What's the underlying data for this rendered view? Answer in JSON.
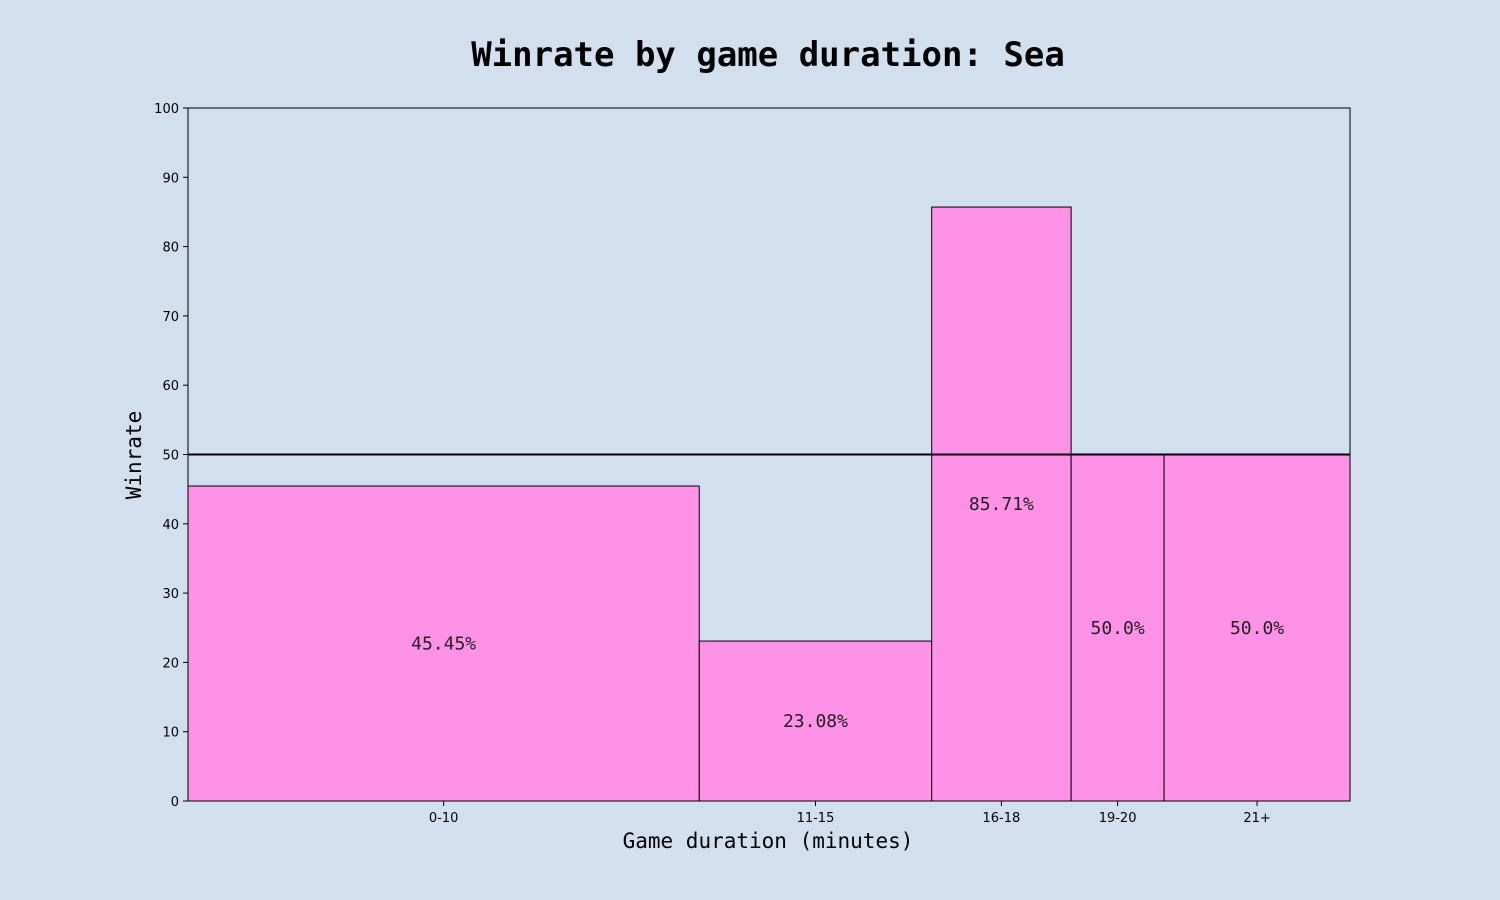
{
  "chart_data": {
    "type": "bar",
    "title": "Winrate by game duration: Sea",
    "xlabel": "Game duration (minutes)",
    "ylabel": "Winrate",
    "ylim": [
      0,
      100
    ],
    "yticks": [
      0,
      10,
      20,
      30,
      40,
      50,
      60,
      70,
      80,
      90,
      100
    ],
    "categories": [
      "0-10",
      "11-15",
      "16-18",
      "19-20",
      "21+"
    ],
    "values": [
      45.45,
      23.08,
      85.71,
      50.0,
      50.0
    ],
    "value_labels": [
      "45.45%",
      "23.08%",
      "85.71%",
      "50.0%",
      "50.0%"
    ],
    "relative_widths": [
      11,
      5,
      3,
      2,
      4
    ],
    "reference_line": 50,
    "grid": false,
    "colors": {
      "background": "#d1dfee",
      "bar_fill": "#ff91e6",
      "bar_edge": "#000000",
      "reference_line": "#000000"
    }
  }
}
